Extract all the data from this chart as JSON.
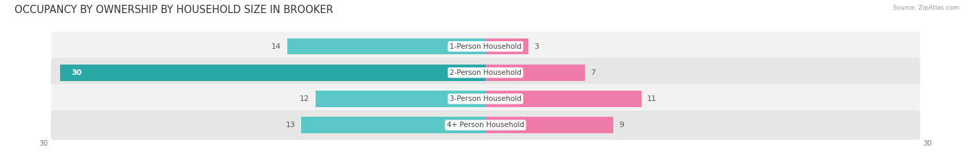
{
  "title": "OCCUPANCY BY OWNERSHIP BY HOUSEHOLD SIZE IN BROOKER",
  "source": "Source: ZipAtlas.com",
  "categories": [
    "1-Person Household",
    "2-Person Household",
    "3-Person Household",
    "4+ Person Household"
  ],
  "owner_values": [
    14,
    30,
    12,
    13
  ],
  "renter_values": [
    3,
    7,
    11,
    9
  ],
  "owner_color": "#5bc8c8",
  "owner_color_dark": "#2aa8a8",
  "renter_color": "#f07aaa",
  "renter_color_light": "#f8c0d8",
  "axis_max": 30,
  "bg_color": "#ffffff",
  "row_bg_odd": "#f0f0f0",
  "row_bg_even": "#e8e8e8",
  "title_fontsize": 10.5,
  "bar_label_fontsize": 8,
  "cat_label_fontsize": 7.5,
  "legend_fontsize": 8,
  "axis_label_fontsize": 7.5
}
